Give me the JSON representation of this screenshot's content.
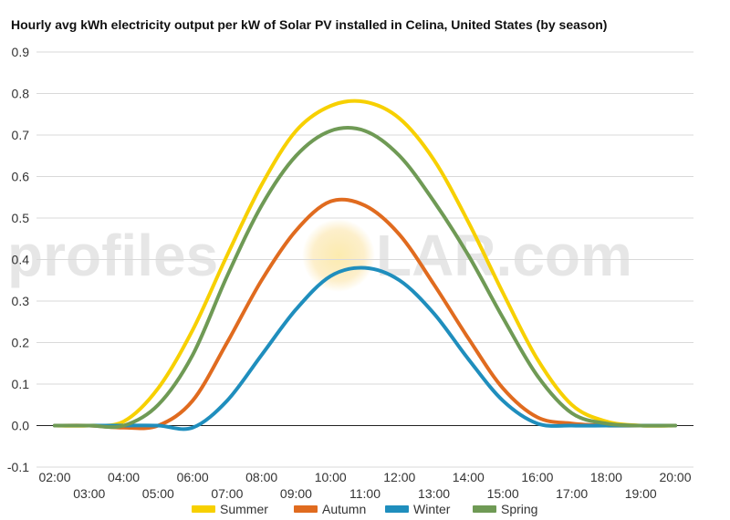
{
  "chart_data": {
    "type": "line",
    "title": "Hourly avg kWh electricity output per kW of Solar PV installed in Celina, United States (by season)",
    "xlabel": "",
    "ylabel": "",
    "ylim": [
      -0.1,
      0.9
    ],
    "y_ticks": [
      "-0.1",
      "0.0",
      "0.1",
      "0.2",
      "0.3",
      "0.4",
      "0.5",
      "0.6",
      "0.7",
      "0.8",
      "0.9"
    ],
    "categories": [
      "02:00",
      "03:00",
      "04:00",
      "05:00",
      "06:00",
      "07:00",
      "08:00",
      "09:00",
      "10:00",
      "11:00",
      "12:00",
      "13:00",
      "14:00",
      "15:00",
      "16:00",
      "17:00",
      "18:00",
      "19:00",
      "20:00"
    ],
    "grid": true,
    "legend_position": "bottom",
    "series": [
      {
        "name": "Summer",
        "color": "#f7d000",
        "values": [
          0,
          0,
          0.01,
          0.09,
          0.23,
          0.41,
          0.58,
          0.71,
          0.77,
          0.78,
          0.74,
          0.64,
          0.49,
          0.32,
          0.16,
          0.05,
          0.01,
          0,
          0
        ]
      },
      {
        "name": "Autumn",
        "color": "#e06b1f",
        "values": [
          0,
          0,
          -0.005,
          0,
          0.06,
          0.2,
          0.35,
          0.47,
          0.54,
          0.53,
          0.46,
          0.34,
          0.21,
          0.09,
          0.02,
          0.005,
          0,
          0,
          0
        ]
      },
      {
        "name": "Winter",
        "color": "#1f8ebd",
        "values": [
          0,
          0,
          0,
          0,
          -0.005,
          0.06,
          0.17,
          0.28,
          0.36,
          0.38,
          0.35,
          0.27,
          0.16,
          0.06,
          0.005,
          0,
          0,
          0,
          0
        ]
      },
      {
        "name": "Spring",
        "color": "#6f9a55",
        "values": [
          0,
          0,
          0,
          0.05,
          0.17,
          0.36,
          0.53,
          0.65,
          0.71,
          0.71,
          0.65,
          0.54,
          0.41,
          0.26,
          0.12,
          0.03,
          0.005,
          0,
          0
        ]
      }
    ]
  },
  "watermark": {
    "left": "profiles",
    "right": "LAR.com"
  }
}
